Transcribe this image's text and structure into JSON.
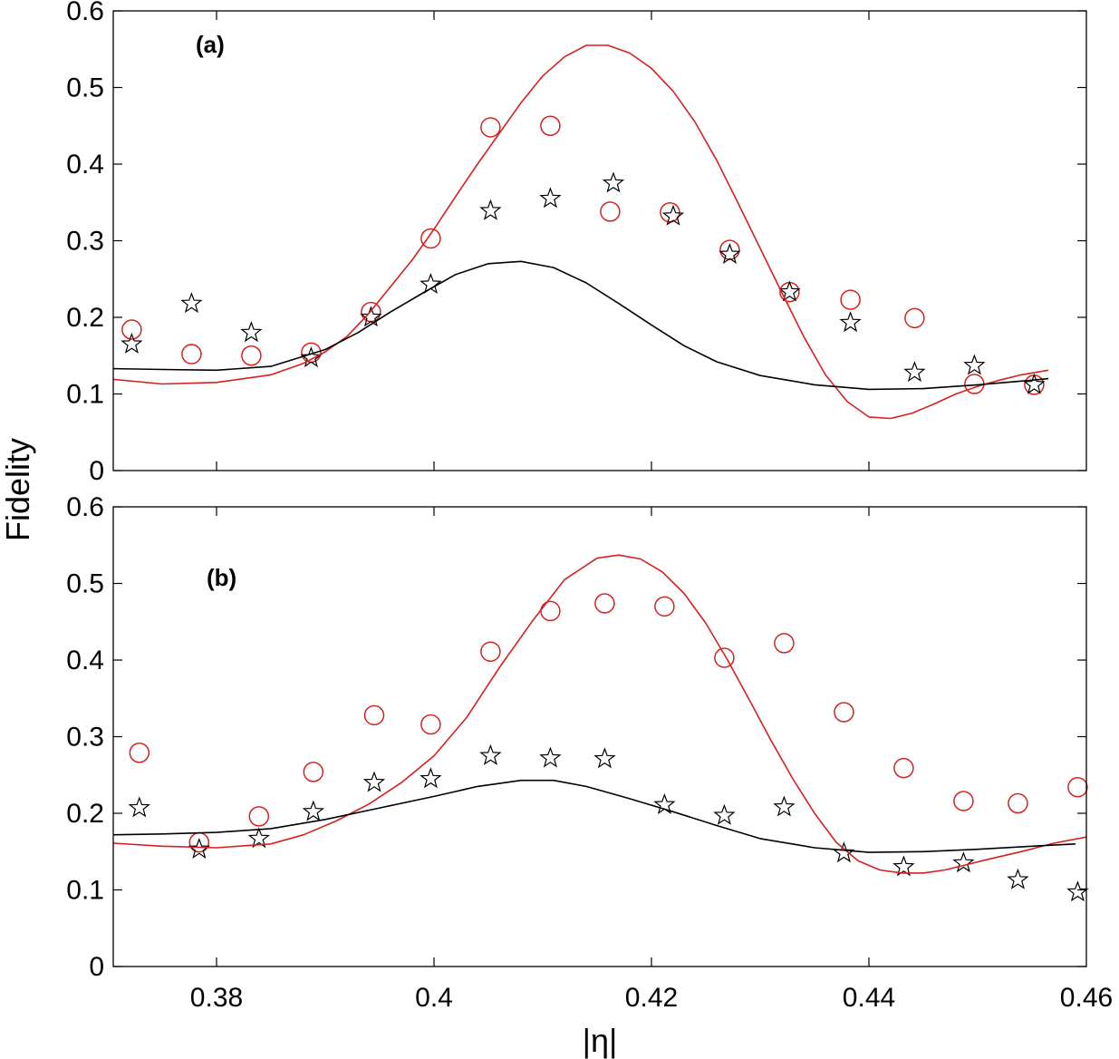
{
  "chart_data": [
    {
      "type": "scatter",
      "panel_label": "(a)",
      "xlabel": "|η|",
      "ylabel": "Fidelity",
      "xlim": [
        0.3705,
        0.46
      ],
      "ylim": [
        0,
        0.6
      ],
      "yticks": [
        "0",
        "0.1",
        "0.2",
        "0.3",
        "0.4",
        "0.5",
        "0.6"
      ],
      "xticks": [],
      "series": [
        {
          "name": "circles",
          "marker": "circle",
          "color": "#d62020",
          "x": [
            0.3722,
            0.3777,
            0.3832,
            0.3887,
            0.3942,
            0.3997,
            0.4052,
            0.4107,
            0.4162,
            0.4217,
            0.4272,
            0.4327,
            0.4383,
            0.4442,
            0.4497,
            0.4552
          ],
          "y": [
            0.184,
            0.152,
            0.15,
            0.154,
            0.207,
            0.303,
            0.448,
            0.45,
            0.338,
            0.337,
            0.288,
            0.233,
            0.223,
            0.199,
            0.113,
            0.112
          ]
        },
        {
          "name": "stars",
          "marker": "star",
          "color": "#000000",
          "x": [
            0.3722,
            0.3777,
            0.3832,
            0.3887,
            0.3942,
            0.3997,
            0.4052,
            0.4107,
            0.4165,
            0.422,
            0.4272,
            0.4327,
            0.4383,
            0.4442,
            0.4497,
            0.4552
          ],
          "y": [
            0.165,
            0.218,
            0.18,
            0.147,
            0.2,
            0.243,
            0.339,
            0.355,
            0.375,
            0.332,
            0.282,
            0.233,
            0.193,
            0.128,
            0.137,
            0.112
          ]
        },
        {
          "name": "red curve",
          "marker": "line",
          "color": "#d62020",
          "x": [
            0.3705,
            0.375,
            0.38,
            0.385,
            0.388,
            0.39,
            0.392,
            0.394,
            0.396,
            0.398,
            0.4,
            0.402,
            0.404,
            0.406,
            0.408,
            0.41,
            0.412,
            0.414,
            0.416,
            0.418,
            0.42,
            0.422,
            0.424,
            0.426,
            0.428,
            0.43,
            0.432,
            0.434,
            0.436,
            0.438,
            0.44,
            0.442,
            0.444,
            0.446,
            0.448,
            0.45,
            0.452,
            0.454,
            0.4565
          ],
          "y": [
            0.119,
            0.113,
            0.115,
            0.125,
            0.14,
            0.155,
            0.175,
            0.205,
            0.24,
            0.275,
            0.315,
            0.358,
            0.4,
            0.44,
            0.48,
            0.515,
            0.54,
            0.555,
            0.555,
            0.545,
            0.525,
            0.495,
            0.455,
            0.405,
            0.348,
            0.29,
            0.232,
            0.175,
            0.125,
            0.09,
            0.07,
            0.068,
            0.075,
            0.087,
            0.1,
            0.11,
            0.118,
            0.125,
            0.131
          ]
        },
        {
          "name": "black curve",
          "marker": "line",
          "color": "#000000",
          "x": [
            0.3705,
            0.375,
            0.38,
            0.385,
            0.39,
            0.393,
            0.396,
            0.399,
            0.402,
            0.405,
            0.408,
            0.411,
            0.414,
            0.417,
            0.42,
            0.423,
            0.426,
            0.43,
            0.435,
            0.44,
            0.445,
            0.45,
            0.455,
            0.4565
          ],
          "y": [
            0.133,
            0.132,
            0.131,
            0.136,
            0.158,
            0.18,
            0.207,
            0.232,
            0.256,
            0.27,
            0.273,
            0.265,
            0.245,
            0.218,
            0.19,
            0.163,
            0.142,
            0.124,
            0.112,
            0.106,
            0.107,
            0.112,
            0.118,
            0.12
          ]
        }
      ]
    },
    {
      "type": "scatter",
      "panel_label": "(b)",
      "xlabel": "|η|",
      "ylabel": "Fidelity",
      "xlim": [
        0.3705,
        0.46
      ],
      "ylim": [
        0,
        0.6
      ],
      "yticks": [
        "0",
        "0.1",
        "0.2",
        "0.3",
        "0.4",
        "0.5",
        "0.6"
      ],
      "xticks": [
        "0.38",
        "0.4",
        "0.42",
        "0.44",
        "0.46"
      ],
      "series": [
        {
          "name": "circles",
          "marker": "circle",
          "color": "#d62020",
          "x": [
            0.3729,
            0.3784,
            0.3839,
            0.3889,
            0.3945,
            0.3997,
            0.4052,
            0.4107,
            0.4157,
            0.4212,
            0.4267,
            0.4322,
            0.4377,
            0.4432,
            0.4487,
            0.4537,
            0.4592
          ],
          "y": [
            0.279,
            0.162,
            0.196,
            0.254,
            0.328,
            0.316,
            0.411,
            0.464,
            0.474,
            0.47,
            0.403,
            0.422,
            0.332,
            0.259,
            0.216,
            0.213,
            0.234
          ]
        },
        {
          "name": "stars",
          "marker": "star",
          "color": "#000000",
          "x": [
            0.3729,
            0.3784,
            0.3839,
            0.3889,
            0.3945,
            0.3997,
            0.4052,
            0.4107,
            0.4157,
            0.4212,
            0.4267,
            0.4322,
            0.4377,
            0.4432,
            0.4487,
            0.4537,
            0.4592
          ],
          "y": [
            0.207,
            0.153,
            0.167,
            0.202,
            0.24,
            0.245,
            0.275,
            0.272,
            0.271,
            0.211,
            0.197,
            0.208,
            0.148,
            0.13,
            0.135,
            0.113,
            0.097
          ]
        },
        {
          "name": "red curve",
          "marker": "line",
          "color": "#d62020",
          "x": [
            0.3705,
            0.375,
            0.38,
            0.385,
            0.388,
            0.391,
            0.394,
            0.397,
            0.4,
            0.403,
            0.406,
            0.409,
            0.412,
            0.415,
            0.417,
            0.419,
            0.421,
            0.423,
            0.425,
            0.427,
            0.429,
            0.431,
            0.433,
            0.435,
            0.437,
            0.439,
            0.441,
            0.443,
            0.445,
            0.447,
            0.449,
            0.451,
            0.454,
            0.457,
            0.46
          ],
          "y": [
            0.161,
            0.157,
            0.155,
            0.16,
            0.172,
            0.19,
            0.212,
            0.24,
            0.275,
            0.325,
            0.39,
            0.45,
            0.505,
            0.533,
            0.537,
            0.532,
            0.515,
            0.487,
            0.448,
            0.4,
            0.348,
            0.295,
            0.245,
            0.2,
            0.162,
            0.138,
            0.126,
            0.122,
            0.122,
            0.126,
            0.133,
            0.14,
            0.15,
            0.161,
            0.169
          ]
        },
        {
          "name": "black curve",
          "marker": "line",
          "color": "#000000",
          "x": [
            0.3705,
            0.375,
            0.38,
            0.385,
            0.39,
            0.395,
            0.4,
            0.404,
            0.408,
            0.411,
            0.414,
            0.418,
            0.422,
            0.426,
            0.43,
            0.435,
            0.44,
            0.445,
            0.45,
            0.455,
            0.459
          ],
          "y": [
            0.172,
            0.173,
            0.175,
            0.18,
            0.192,
            0.207,
            0.222,
            0.235,
            0.243,
            0.243,
            0.235,
            0.219,
            0.202,
            0.184,
            0.167,
            0.155,
            0.149,
            0.15,
            0.153,
            0.157,
            0.16
          ]
        }
      ]
    }
  ]
}
